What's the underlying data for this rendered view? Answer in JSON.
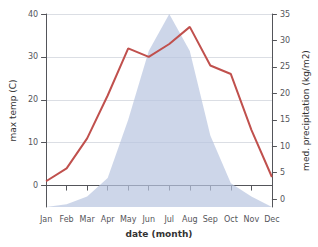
{
  "chart_data": {
    "type": "line",
    "categories": [
      "Jan",
      "Feb",
      "Mar",
      "Apr",
      "May",
      "Jun",
      "Jul",
      "Aug",
      "Sep",
      "Oct",
      "Nov",
      "Dec"
    ],
    "xlabel": "date (month)",
    "ylabel": "max temp (C)",
    "y2label": "med. precipitation (kg/m2)",
    "ylim": [
      -5,
      40
    ],
    "yticks": [
      0,
      10,
      20,
      30,
      40
    ],
    "y2lim": [
      -1.5,
      35
    ],
    "y2ticks": [
      0,
      5,
      10,
      15,
      20,
      25,
      30,
      35
    ],
    "grid": true,
    "series": [
      {
        "type": "line",
        "axis": "y",
        "color": "#c0504d",
        "values": [
          1,
          4,
          11,
          21,
          32,
          30,
          33,
          37,
          28,
          26,
          13,
          2
        ]
      },
      {
        "type": "area",
        "axis": "y2",
        "color": "#b8c4e0",
        "values": [
          -1.5,
          -1.0,
          0.5,
          4,
          15,
          28,
          35,
          28,
          12,
          3,
          0.5,
          -1.5
        ]
      }
    ]
  }
}
